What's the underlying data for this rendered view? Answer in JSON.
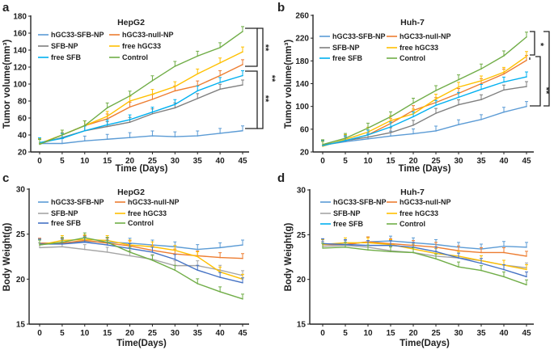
{
  "chart_data": [
    {
      "panel": "a",
      "type": "line",
      "title": "HepG2",
      "xlabel": "Time (Days)",
      "ylabel": "Tumor volume(mm³)",
      "x": [
        0,
        5,
        10,
        15,
        20,
        25,
        30,
        35,
        40,
        45
      ],
      "xticks": [
        0,
        5,
        10,
        15,
        20,
        25,
        30,
        35,
        40,
        45
      ],
      "ylim": [
        20,
        180
      ],
      "yticks": [
        20,
        40,
        60,
        80,
        100,
        120,
        140,
        160,
        180
      ],
      "legend_placement": "top-left",
      "series": [
        {
          "name": "hGC33-SFB-NP",
          "color": "#5B9BD5",
          "values": [
            30,
            30,
            33,
            35,
            37,
            39,
            38,
            39,
            42,
            45
          ]
        },
        {
          "name": "hGC33-null-NP",
          "color": "#ED7D31",
          "values": [
            30,
            40,
            51,
            59,
            73,
            82,
            92,
            98,
            110,
            123
          ]
        },
        {
          "name": "SFB-NP",
          "color": "#7F7F7F",
          "values": [
            30,
            37,
            45,
            50,
            55,
            65,
            72,
            83,
            94,
            99
          ]
        },
        {
          "name": "free hGC33",
          "color": "#FFC000",
          "values": [
            30,
            40,
            51,
            62,
            80,
            88,
            97,
            112,
            125,
            138
          ]
        },
        {
          "name": "free SFB",
          "color": "#00B0F0",
          "values": [
            31,
            36,
            45,
            52,
            58,
            67,
            76,
            92,
            102,
            110
          ]
        },
        {
          "name": "Control",
          "color": "#70AD47",
          "values": [
            29,
            40,
            51,
            72,
            86,
            104,
            121,
            133,
            143,
            162
          ]
        }
      ],
      "annotations": [
        "**",
        "**",
        "**"
      ]
    },
    {
      "panel": "b",
      "type": "line",
      "title": "Huh-7",
      "xlabel": "Time (Days)",
      "ylabel": "Tumor volume(mm³)",
      "x": [
        0,
        5,
        10,
        15,
        20,
        25,
        30,
        35,
        40,
        45
      ],
      "xticks": [
        0,
        5,
        10,
        15,
        20,
        25,
        30,
        35,
        40,
        45
      ],
      "ylim": [
        20,
        260
      ],
      "yticks": [
        20,
        60,
        100,
        140,
        180,
        220,
        260
      ],
      "legend_placement": "top-left",
      "series": [
        {
          "name": "hGC33-SFB-NP",
          "color": "#5B9BD5",
          "values": [
            32,
            38,
            43,
            48,
            52,
            57,
            68,
            77,
            90,
            100
          ]
        },
        {
          "name": "hGC33-null-NP",
          "color": "#ED7D31",
          "values": [
            31,
            40,
            50,
            70,
            93,
            107,
            123,
            140,
            157,
            181
          ]
        },
        {
          "name": "SFB-NP",
          "color": "#7F7F7F",
          "values": [
            32,
            40,
            46,
            54,
            67,
            88,
            103,
            112,
            129,
            135
          ]
        },
        {
          "name": "free hGC33",
          "color": "#FFC000",
          "values": [
            30,
            42,
            55,
            75,
            87,
            113,
            134,
            145,
            160,
            188
          ]
        },
        {
          "name": "free SFB",
          "color": "#00B0F0",
          "values": [
            31,
            40,
            50,
            64,
            82,
            102,
            116,
            130,
            143,
            152
          ]
        },
        {
          "name": "Control",
          "color": "#70AD47",
          "values": [
            33,
            44,
            62,
            82,
            106,
            128,
            147,
            166,
            189,
            222
          ]
        }
      ],
      "annotations": [
        "*",
        "**",
        "**"
      ]
    },
    {
      "panel": "c",
      "type": "line",
      "title": "HepG2",
      "xlabel": "Time(Days)",
      "ylabel": "Body Weight(g)",
      "x": [
        0,
        5,
        10,
        15,
        20,
        25,
        30,
        35,
        40,
        45
      ],
      "xticks": [
        0,
        5,
        10,
        15,
        20,
        25,
        30,
        35,
        40,
        45
      ],
      "ylim": [
        15,
        30
      ],
      "yticks": [
        15,
        20,
        25,
        30
      ],
      "legend_placement": "top-left",
      "series": [
        {
          "name": "hGC33-SFB-NP",
          "color": "#5B9BD5",
          "values": [
            24,
            24,
            24.2,
            24.1,
            24,
            23.8,
            23.6,
            23.3,
            23.5,
            23.8
          ]
        },
        {
          "name": "hGC33-null-NP",
          "color": "#ED7D31",
          "values": [
            24,
            24,
            24.3,
            24,
            23.7,
            23.2,
            22.8,
            22.6,
            22.4,
            22.3
          ]
        },
        {
          "name": "SFB-NP",
          "color": "#A5A5A5",
          "values": [
            23.5,
            23.6,
            23.3,
            23,
            22.6,
            22.2,
            21.5,
            21.5,
            21,
            20.4
          ]
        },
        {
          "name": "free hGC33",
          "color": "#FFC000",
          "values": [
            23.8,
            24.3,
            24.4,
            24.3,
            23.8,
            23.6,
            23.2,
            22.5,
            20.8,
            20
          ]
        },
        {
          "name": "free SFB",
          "color": "#4472C4",
          "values": [
            23.9,
            23.9,
            24.1,
            23.8,
            23.4,
            23,
            22.2,
            21,
            20.2,
            19.6
          ]
        },
        {
          "name": "Control",
          "color": "#70AD47",
          "values": [
            23.8,
            24.1,
            24.6,
            24.1,
            23,
            22.1,
            21,
            19.5,
            18.6,
            17.8
          ]
        }
      ],
      "annotations": []
    },
    {
      "panel": "d",
      "type": "line",
      "title": "Huh-7",
      "xlabel": "Time(Days)",
      "ylabel": "Body Weight(g)",
      "x": [
        0,
        5,
        10,
        15,
        20,
        25,
        30,
        35,
        40,
        45
      ],
      "xticks": [
        0,
        5,
        10,
        15,
        20,
        25,
        30,
        35,
        40,
        45
      ],
      "ylim": [
        15,
        30
      ],
      "yticks": [
        15,
        20,
        25,
        30
      ],
      "legend_placement": "top-left",
      "series": [
        {
          "name": "hGC33-SFB-NP",
          "color": "#5B9BD5",
          "values": [
            24,
            23.9,
            24.2,
            24.3,
            24.1,
            23.9,
            23.6,
            23.4,
            23.7,
            23.6
          ]
        },
        {
          "name": "hGC33-null-NP",
          "color": "#ED7D31",
          "values": [
            23.9,
            23.9,
            24.2,
            24,
            23.8,
            23.6,
            23.2,
            23,
            23,
            22.6
          ]
        },
        {
          "name": "SFB-NP",
          "color": "#A5A5A5",
          "values": [
            23.7,
            23.8,
            23.6,
            23.2,
            23,
            22.6,
            22.4,
            22.1,
            21.6,
            21.3
          ]
        },
        {
          "name": "free hGC33",
          "color": "#FFC000",
          "values": [
            23.9,
            24.1,
            24.1,
            23.9,
            23.4,
            22.9,
            22.6,
            22.1,
            21.6,
            21.1
          ]
        },
        {
          "name": "free SFB",
          "color": "#00B0F0",
          "line_color": "#4472C4",
          "values": [
            24,
            23.9,
            23.8,
            23.8,
            23.6,
            23.1,
            22.4,
            21.8,
            21.1,
            20.3
          ]
        },
        {
          "name": "Control",
          "color": "#70AD47",
          "values": [
            23.5,
            23.6,
            23.3,
            23.1,
            23,
            22.3,
            21.4,
            21,
            20.3,
            19.4
          ]
        }
      ],
      "annotations": []
    }
  ]
}
